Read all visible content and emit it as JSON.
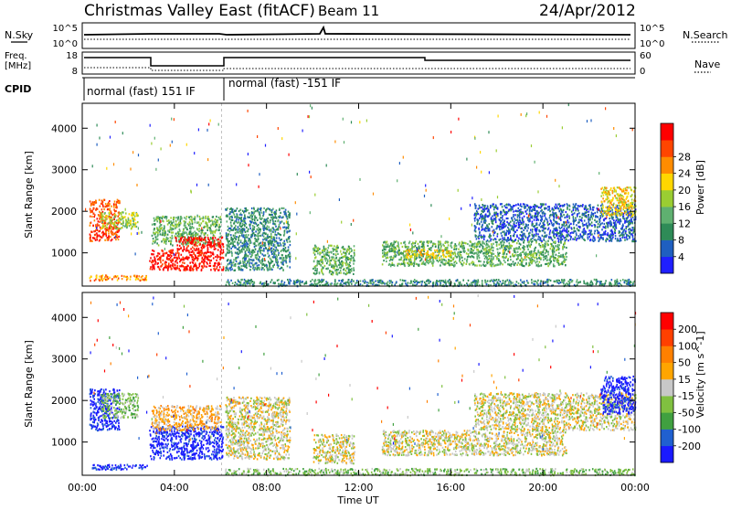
{
  "header": {
    "title": "Christmas Valley East (fitACF)",
    "beam": "Beam 11",
    "date": "24/Apr/2012"
  },
  "nsky_panel": {
    "left_label": "N.Sky",
    "left_ticks": [
      "10^5",
      "10^0"
    ],
    "right_label": "N.Search",
    "right_ticks": [
      "10^5",
      "10^0"
    ]
  },
  "freq_panel": {
    "left_label_1": "Freq.",
    "left_label_2": "[MHz]",
    "left_ticks": [
      "18",
      "8"
    ],
    "right_label": "Nave",
    "right_ticks": [
      "60",
      "0"
    ]
  },
  "cpid": {
    "label": "CPID",
    "modes": [
      "normal (fast) 151 IF",
      "normal (fast) -151 IF"
    ]
  },
  "colors": {
    "power": [
      "#1f1fff",
      "#1f5fc0",
      "#2e8b57",
      "#5fb070",
      "#9acd32",
      "#ffd700",
      "#ff8c00",
      "#ff4500",
      "#ff0000"
    ],
    "velocity": [
      "#1a1aff",
      "#2060d0",
      "#40a040",
      "#80c040",
      "#c8c8c8",
      "#ffa500",
      "#ff8000",
      "#ff4000",
      "#ff0000"
    ]
  },
  "chart_data": [
    {
      "type": "heatmap",
      "title": "",
      "xlabel": "Time UT",
      "ylabel": "Slant Range [km]",
      "x_ticks": [
        "00:00",
        "04:00",
        "08:00",
        "12:00",
        "16:00",
        "20:00",
        "00:00"
      ],
      "xlim": [
        0,
        24
      ],
      "y_ticks": [
        1000,
        2000,
        3000,
        4000
      ],
      "ylim": [
        200,
        4600
      ],
      "colorbar": {
        "label": "Power [dB]",
        "ticks": [
          "4",
          "8",
          "12",
          "16",
          "20",
          "24",
          "28"
        ]
      },
      "regions": [
        {
          "t0": 0.3,
          "t1": 1.6,
          "r0": 1300,
          "r1": 2300,
          "level": 7
        },
        {
          "t0": 0.8,
          "t1": 2.4,
          "r0": 1600,
          "r1": 2000,
          "level": 4
        },
        {
          "t0": 0.3,
          "t1": 2.8,
          "r0": 350,
          "r1": 480,
          "level": 6
        },
        {
          "t0": 2.9,
          "t1": 4.0,
          "r0": 600,
          "r1": 1100,
          "level": 8
        },
        {
          "t0": 3.0,
          "t1": 6.0,
          "r0": 1200,
          "r1": 1900,
          "level": 3
        },
        {
          "t0": 4.0,
          "t1": 6.1,
          "r0": 600,
          "r1": 1400,
          "level": 8
        },
        {
          "t0": 6.2,
          "t1": 9.0,
          "r0": 600,
          "r1": 2100,
          "level": 2
        },
        {
          "t0": 10.0,
          "t1": 11.8,
          "r0": 500,
          "r1": 1200,
          "level": 3
        },
        {
          "t0": 13.0,
          "t1": 21.0,
          "r0": 700,
          "r1": 1300,
          "level": 3
        },
        {
          "t0": 14.0,
          "t1": 16.0,
          "r0": 900,
          "r1": 1100,
          "level": 5
        },
        {
          "t0": 17.0,
          "t1": 24.0,
          "r0": 1300,
          "r1": 2200,
          "level": 1
        },
        {
          "t0": 22.5,
          "t1": 24.0,
          "r0": 1900,
          "r1": 2600,
          "level": 5
        },
        {
          "t0": 6.2,
          "t1": 24.0,
          "r0": 220,
          "r1": 380,
          "level": 2
        }
      ]
    },
    {
      "type": "heatmap",
      "title": "",
      "xlabel": "Time UT",
      "ylabel": "Slant Range [km]",
      "x_ticks": [
        "00:00",
        "04:00",
        "08:00",
        "12:00",
        "16:00",
        "20:00",
        "00:00"
      ],
      "xlim": [
        0,
        24
      ],
      "y_ticks": [
        1000,
        2000,
        3000,
        4000
      ],
      "ylim": [
        200,
        4600
      ],
      "colorbar": {
        "label": "Velocity [m s^-1]",
        "ticks": [
          "200",
          "100",
          "50",
          "15",
          "-15",
          "-50",
          "-100",
          "-200"
        ]
      },
      "regions": [
        {
          "t0": 0.3,
          "t1": 1.6,
          "r0": 1300,
          "r1": 2300,
          "level": 0
        },
        {
          "t0": 0.8,
          "t1": 2.4,
          "r0": 1600,
          "r1": 2200,
          "level": 3
        },
        {
          "t0": 0.3,
          "t1": 2.8,
          "r0": 350,
          "r1": 480,
          "level": 0
        },
        {
          "t0": 2.9,
          "t1": 6.1,
          "r0": 600,
          "r1": 1400,
          "level": 0
        },
        {
          "t0": 3.0,
          "t1": 6.0,
          "r0": 1300,
          "r1": 1900,
          "level": 5
        },
        {
          "t0": 6.2,
          "t1": 9.0,
          "r0": 600,
          "r1": 2100,
          "level": 4
        },
        {
          "t0": 10.0,
          "t1": 11.8,
          "r0": 500,
          "r1": 1200,
          "level": 4
        },
        {
          "t0": 13.0,
          "t1": 21.0,
          "r0": 700,
          "r1": 1300,
          "level": 4
        },
        {
          "t0": 17.0,
          "t1": 24.0,
          "r0": 1300,
          "r1": 2200,
          "level": 4
        },
        {
          "t0": 22.5,
          "t1": 24.0,
          "r0": 1700,
          "r1": 2600,
          "level": 0
        },
        {
          "t0": 6.2,
          "t1": 24.0,
          "r0": 220,
          "r1": 380,
          "level": 3
        }
      ]
    }
  ]
}
